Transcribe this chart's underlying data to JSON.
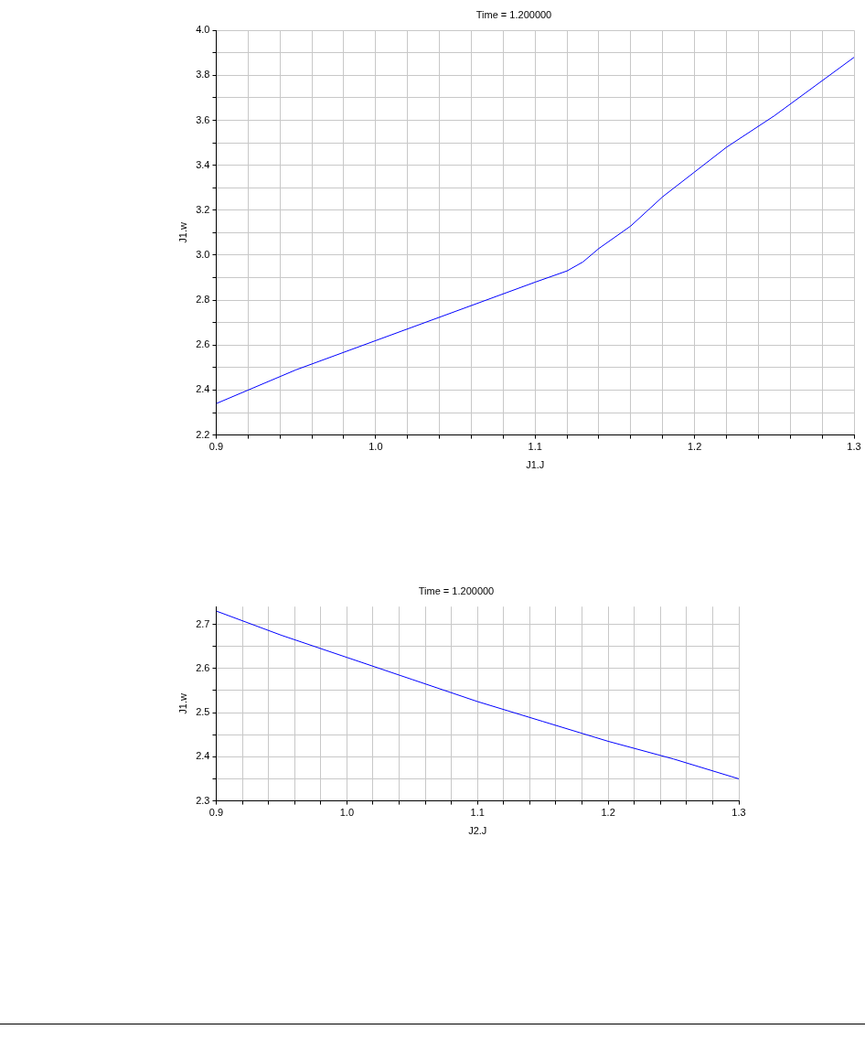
{
  "chart_data": [
    {
      "type": "line",
      "title": "Time = 1.200000",
      "xlabel": "J1.J",
      "ylabel": "J1.w",
      "xlim": [
        0.9,
        1.3
      ],
      "ylim": [
        2.2,
        4.0
      ],
      "xticks": [
        0.9,
        {
          "value": 0.92,
          "label": null
        },
        {
          "value": 0.94,
          "label": null
        },
        {
          "value": 0.96,
          "label": null
        },
        {
          "value": 0.98,
          "label": null
        },
        {
          "value": 1.0,
          "label": "1.0"
        },
        {
          "value": 1.02,
          "label": null
        },
        {
          "value": 1.04,
          "label": null
        },
        {
          "value": 1.06,
          "label": null
        },
        {
          "value": 1.08,
          "label": null
        },
        1.1,
        {
          "value": 1.12,
          "label": null
        },
        {
          "value": 1.14,
          "label": null
        },
        {
          "value": 1.16,
          "label": null
        },
        {
          "value": 1.18,
          "label": null
        },
        1.2,
        {
          "value": 1.22,
          "label": null
        },
        {
          "value": 1.24,
          "label": null
        },
        {
          "value": 1.26,
          "label": null
        },
        {
          "value": 1.28,
          "label": null
        },
        1.3
      ],
      "yticks": [
        2.2,
        {
          "value": 2.3,
          "label": null
        },
        2.4,
        {
          "value": 2.5,
          "label": null
        },
        2.6,
        {
          "value": 2.7,
          "label": null
        },
        2.8,
        {
          "value": 2.9,
          "label": null
        },
        {
          "value": 3.0,
          "label": "3.0"
        },
        {
          "value": 3.1,
          "label": null
        },
        3.2,
        {
          "value": 3.3,
          "label": null
        },
        3.4,
        {
          "value": 3.5,
          "label": null
        },
        3.6,
        {
          "value": 3.7,
          "label": null
        },
        3.8,
        {
          "value": 3.9,
          "label": null
        },
        {
          "value": 4.0,
          "label": "4.0"
        }
      ],
      "grid": true,
      "legend": false,
      "series": [
        {
          "color": "#0000ff",
          "x": [
            0.9,
            0.95,
            1.0,
            1.05,
            1.1,
            1.12,
            1.13,
            1.14,
            1.16,
            1.18,
            1.2,
            1.22,
            1.25,
            1.3
          ],
          "values": [
            2.34,
            2.49,
            2.62,
            2.75,
            2.88,
            2.93,
            2.97,
            3.03,
            3.13,
            3.26,
            3.37,
            3.48,
            3.62,
            3.88
          ]
        }
      ]
    },
    {
      "type": "line",
      "title": "Time = 1.200000",
      "xlabel": "J2.J",
      "ylabel": "J1.w",
      "xlim": [
        0.9,
        1.3
      ],
      "ylim": [
        2.3,
        2.74
      ],
      "xticks": [
        0.9,
        {
          "value": 0.92,
          "label": null
        },
        {
          "value": 0.94,
          "label": null
        },
        {
          "value": 0.96,
          "label": null
        },
        {
          "value": 0.98,
          "label": null
        },
        {
          "value": 1.0,
          "label": "1.0"
        },
        {
          "value": 1.02,
          "label": null
        },
        {
          "value": 1.04,
          "label": null
        },
        {
          "value": 1.06,
          "label": null
        },
        {
          "value": 1.08,
          "label": null
        },
        1.1,
        {
          "value": 1.12,
          "label": null
        },
        {
          "value": 1.14,
          "label": null
        },
        {
          "value": 1.16,
          "label": null
        },
        {
          "value": 1.18,
          "label": null
        },
        1.2,
        {
          "value": 1.22,
          "label": null
        },
        {
          "value": 1.24,
          "label": null
        },
        {
          "value": 1.26,
          "label": null
        },
        {
          "value": 1.28,
          "label": null
        },
        1.3
      ],
      "yticks": [
        2.3,
        {
          "value": 2.35,
          "label": null
        },
        2.4,
        {
          "value": 2.45,
          "label": null
        },
        2.5,
        {
          "value": 2.55,
          "label": null
        },
        2.6,
        {
          "value": 2.65,
          "label": null
        },
        2.7
      ],
      "grid": true,
      "legend": false,
      "series": [
        {
          "color": "#0000ff",
          "x": [
            0.9,
            0.95,
            1.0,
            1.05,
            1.1,
            1.15,
            1.2,
            1.25,
            1.3
          ],
          "values": [
            2.73,
            2.675,
            2.625,
            2.575,
            2.525,
            2.48,
            2.435,
            2.395,
            2.35
          ]
        }
      ]
    }
  ]
}
